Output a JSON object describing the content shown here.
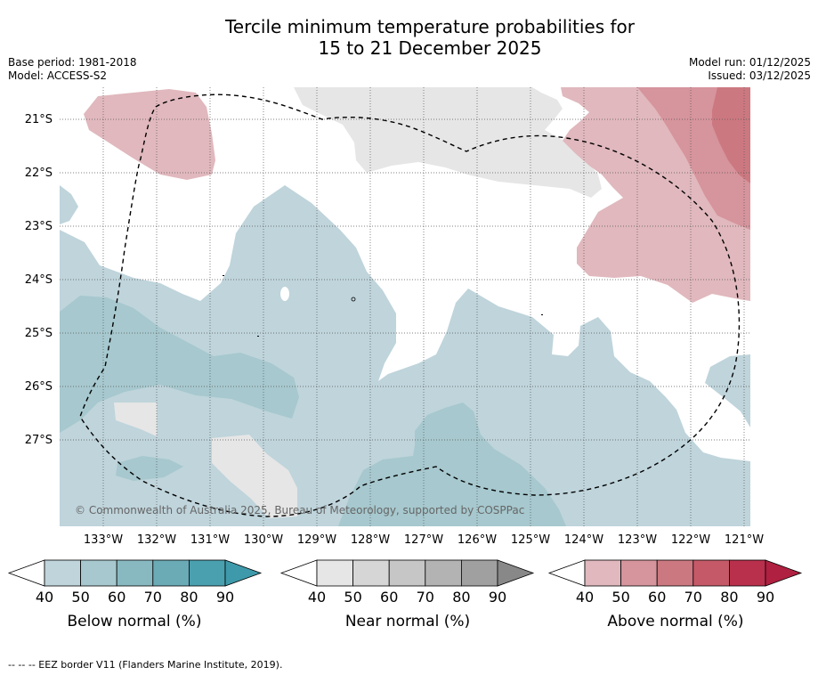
{
  "title": {
    "line1": "Tercile minimum temperature probabilities for",
    "line2": "15 to 21 December 2025"
  },
  "meta": {
    "base_period": "Base period: 1981-2018",
    "model": "Model: ACCESS-S2",
    "model_run": "Model run: 01/12/2025",
    "issued": "Issued: 03/12/2025"
  },
  "map": {
    "latitude_labels": [
      "21°S",
      "22°S",
      "23°S",
      "24°S",
      "25°S",
      "26°S",
      "27°S"
    ],
    "longitude_labels": [
      "133°W",
      "132°W",
      "131°W",
      "130°W",
      "129°W",
      "128°W",
      "127°W",
      "126°W",
      "125°W",
      "124°W",
      "123°W",
      "122°W",
      "121°W"
    ],
    "copyright": "© Commonwealth of Australia 2025, Bureau of Meteorology, supported by COSPPac"
  },
  "colorbars": [
    {
      "label": "Below normal (%)",
      "ticks": [
        "40",
        "50",
        "60",
        "70",
        "80",
        "90"
      ],
      "colors": [
        "#bfd4db",
        "#a6c8ce",
        "#88b9c1",
        "#6aabb6",
        "#4aa0af",
        "#3e9aaa"
      ]
    },
    {
      "label": "Near normal (%)",
      "ticks": [
        "40",
        "50",
        "60",
        "70",
        "80",
        "90"
      ],
      "colors": [
        "#e6e6e6",
        "#d6d6d6",
        "#c6c6c6",
        "#b3b3b3",
        "#a0a0a0",
        "#888888"
      ]
    },
    {
      "label": "Above normal (%)",
      "ticks": [
        "40",
        "50",
        "60",
        "70",
        "80",
        "90"
      ],
      "colors": [
        "#e0b8bd",
        "#d6949c",
        "#cc7880",
        "#c55968",
        "#b9304c",
        "#b02040"
      ]
    }
  ],
  "footnote": "--  --  -- EEZ border V11 (Flanders Marine Institute, 2019).",
  "colors": {
    "below_normal_40": "#bfd4db",
    "below_normal_50": "#a6c8ce",
    "near_normal_40": "#e6e6e6",
    "above_normal_40": "#e0b8bd",
    "above_normal_50": "#d6949c",
    "above_normal_60": "#cc7880"
  }
}
